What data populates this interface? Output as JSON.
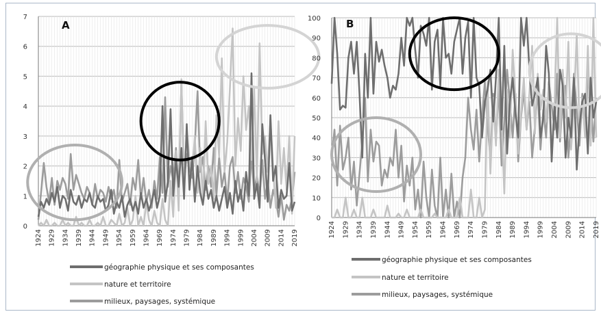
{
  "figure": {
    "series_colors": {
      "geographie": "#6e6e6e",
      "nature": "#c4c4c4",
      "milieux": "#9c9c9c"
    }
  },
  "chart_data": [
    {
      "type": "line",
      "panel_label": "A",
      "title": "",
      "xlabel": "",
      "ylabel": "",
      "ylim": [
        0,
        7
      ],
      "yticks": [
        0,
        1,
        2,
        3,
        4,
        5,
        6,
        7
      ],
      "x_start": 1924,
      "x_end": 2019,
      "xtick_labels": [
        "1924",
        "1929",
        "1934",
        "1939",
        "1944",
        "1949",
        "1954",
        "1959",
        "1964",
        "1969",
        "1974",
        "1979",
        "1984",
        "1989",
        "1994",
        "1999",
        "2004",
        "2009",
        "2014",
        "2019"
      ],
      "grid": true,
      "legend_placement": "bottom",
      "highlight_ellipses": [
        {
          "color": "#b0b0b0",
          "x_range": [
            1920,
            1955
          ],
          "y_range": [
            0.2,
            2.7
          ]
        },
        {
          "color": "#000000",
          "x_range": [
            1962,
            1991
          ],
          "y_range": [
            2.2,
            4.8
          ]
        },
        {
          "color": "#d4d4d4",
          "x_range": [
            1990,
            2028
          ],
          "y_range": [
            4.6,
            6.7
          ]
        }
      ],
      "series": [
        {
          "name": "géographie physique et ses composantes",
          "color": "#6e6e6e",
          "values": [
            0.3,
            0.8,
            0.6,
            0.9,
            0.7,
            1.1,
            0.8,
            1.3,
            0.6,
            1.0,
            0.9,
            0.5,
            1.2,
            0.8,
            0.7,
            1.0,
            0.6,
            0.9,
            0.8,
            1.1,
            0.7,
            0.6,
            1.0,
            0.8,
            0.9,
            0.5,
            0.7,
            1.2,
            0.4,
            0.8,
            0.6,
            1.0,
            0.3,
            0.7,
            0.9,
            0.5,
            0.8,
            0.4,
            1.1,
            0.6,
            0.9,
            0.5,
            0.8,
            1.2,
            0.6,
            1.0,
            4.0,
            0.8,
            1.5,
            3.9,
            1.0,
            2.2,
            1.3,
            2.6,
            0.9,
            3.4,
            1.2,
            2.3,
            0.8,
            2.0,
            1.1,
            0.7,
            1.5,
            0.9,
            1.2,
            0.6,
            1.0,
            0.5,
            0.9,
            1.3,
            0.6,
            1.1,
            0.4,
            1.5,
            0.8,
            1.2,
            0.5,
            1.8,
            1.0,
            5.1,
            0.9,
            1.4,
            0.6,
            3.4,
            2.2,
            0.8,
            3.7,
            1.5,
            2.0,
            0.6,
            1.2,
            0.9,
            1.0,
            2.1,
            0.5,
            0.8
          ]
        },
        {
          "name": "nature et territoire",
          "color": "#c4c4c4",
          "values": [
            0.0,
            0.1,
            0.0,
            0.2,
            0.0,
            0.0,
            0.1,
            0.0,
            0.0,
            0.2,
            0.0,
            0.1,
            0.0,
            0.0,
            0.3,
            0.0,
            0.1,
            0.0,
            0.0,
            0.2,
            0.0,
            0.0,
            0.1,
            0.0,
            0.3,
            0.0,
            0.0,
            0.2,
            0.1,
            0.0,
            0.4,
            0.0,
            0.1,
            0.6,
            0.0,
            0.2,
            1.0,
            0.0,
            0.3,
            0.0,
            0.8,
            0.2,
            0.0,
            0.5,
            0.1,
            0.0,
            0.9,
            0.2,
            0.0,
            1.5,
            0.3,
            2.5,
            0.5,
            4.9,
            1.2,
            3.2,
            2.2,
            1.8,
            3.0,
            1.1,
            2.6,
            0.8,
            3.5,
            1.4,
            2.0,
            0.9,
            3.7,
            2.3,
            5.6,
            1.8,
            2.8,
            4.6,
            6.6,
            2.0,
            3.6,
            2.5,
            5.0,
            3.2,
            4.0,
            2.2,
            4.6,
            1.5,
            6.1,
            2.4,
            3.0,
            1.8,
            3.5,
            2.0,
            0.6,
            3.5,
            1.4,
            2.6,
            1.2,
            3.0,
            0.4,
            3.0
          ]
        },
        {
          "name": "milieux, paysages, systémique",
          "color": "#9c9c9c",
          "values": [
            0.2,
            1.1,
            2.1,
            1.3,
            0.8,
            1.6,
            0.7,
            1.5,
            1.2,
            1.6,
            1.4,
            0.9,
            2.4,
            1.2,
            1.7,
            1.4,
            1.1,
            0.9,
            1.3,
            1.1,
            0.7,
            1.4,
            0.9,
            1.2,
            1.1,
            0.8,
            1.3,
            0.9,
            1.2,
            0.6,
            2.2,
            0.8,
            1.1,
            1.4,
            0.7,
            1.6,
            1.2,
            2.2,
            0.9,
            1.6,
            0.8,
            1.2,
            0.6,
            1.5,
            0.9,
            2.3,
            1.1,
            4.3,
            1.3,
            2.0,
            1.5,
            2.6,
            1.1,
            4.8,
            1.5,
            2.4,
            1.9,
            1.6,
            2.7,
            4.5,
            1.8,
            2.3,
            1.2,
            2.0,
            1.3,
            2.6,
            1.0,
            2.3,
            1.3,
            1.8,
            0.8,
            2.0,
            2.3,
            1.1,
            1.8,
            0.9,
            1.6,
            1.3,
            0.8,
            2.4,
            1.1,
            1.7,
            1.0,
            2.2,
            0.9,
            1.5,
            0.6,
            1.2,
            0.9,
            0.3,
            1.0,
            0.2,
            0.7,
            0.5,
            0.9,
            1.8
          ]
        }
      ]
    },
    {
      "type": "line",
      "panel_label": "B",
      "title": "",
      "xlabel": "",
      "ylabel": "",
      "ylim": [
        0,
        100
      ],
      "yticks": [
        0,
        10,
        20,
        30,
        40,
        50,
        60,
        70,
        80,
        90,
        100
      ],
      "x_start": 1924,
      "x_end": 2019,
      "xtick_labels": [
        "1924",
        "1929",
        "1934",
        "1939",
        "1944",
        "1949",
        "1954",
        "1959",
        "1964",
        "1969",
        "1974",
        "1979",
        "1984",
        "1989",
        "1994",
        "1999",
        "2004",
        "2009",
        "2014",
        "2019"
      ],
      "grid": true,
      "legend_placement": "bottom",
      "highlight_ellipses": [
        {
          "color": "#b0b0b0",
          "x_range": [
            1924,
            1956
          ],
          "y_range": [
            13,
            50
          ]
        },
        {
          "color": "#000000",
          "x_range": [
            1952,
            1984
          ],
          "y_range": [
            64,
            100
          ]
        },
        {
          "color": "#d4d4d4",
          "x_range": [
            1995,
            2025
          ],
          "y_range": [
            55,
            92
          ]
        }
      ],
      "series": [
        {
          "name": "géographie physique et ses composantes",
          "color": "#6e6e6e",
          "values": [
            67,
            100,
            82,
            54,
            56,
            55,
            80,
            88,
            72,
            88,
            62,
            30,
            82,
            60,
            100,
            62,
            88,
            78,
            84,
            76,
            70,
            60,
            66,
            64,
            72,
            90,
            76,
            100,
            96,
            100,
            84,
            70,
            96,
            92,
            86,
            100,
            64,
            88,
            94,
            66,
            100,
            80,
            82,
            72,
            88,
            94,
            100,
            72,
            90,
            98,
            60,
            100,
            70,
            66,
            40,
            58,
            64,
            74,
            48,
            70,
            100,
            44,
            86,
            32,
            58,
            70,
            52,
            40,
            100,
            86,
            100,
            74,
            56,
            62,
            70,
            40,
            50,
            86,
            72,
            28,
            56,
            40,
            74,
            66,
            30,
            50,
            40,
            70,
            24,
            46,
            58,
            62,
            32,
            70,
            50,
            58
          ]
        },
        {
          "name": "nature et territoire",
          "color": "#c4c4c4",
          "values": [
            0,
            0,
            4,
            0,
            0,
            10,
            0,
            0,
            4,
            0,
            0,
            10,
            0,
            0,
            0,
            4,
            0,
            0,
            0,
            0,
            6,
            0,
            0,
            0,
            2,
            0,
            0,
            4,
            0,
            0,
            0,
            0,
            4,
            0,
            0,
            0,
            0,
            2,
            0,
            0,
            0,
            0,
            4,
            0,
            0,
            0,
            10,
            0,
            0,
            0,
            14,
            0,
            0,
            10,
            0,
            4,
            68,
            22,
            60,
            36,
            74,
            50,
            12,
            64,
            40,
            84,
            60,
            32,
            52,
            70,
            44,
            62,
            86,
            42,
            72,
            54,
            64,
            48,
            66,
            32,
            56,
            100,
            40,
            74,
            50,
            88,
            34,
            56,
            92,
            46,
            60,
            40,
            86,
            36,
            100,
            40
          ]
        },
        {
          "name": "milieux, paysages, systémique",
          "color": "#9c9c9c",
          "values": [
            30,
            44,
            16,
            46,
            24,
            30,
            40,
            14,
            28,
            6,
            22,
            38,
            60,
            18,
            44,
            28,
            38,
            36,
            16,
            24,
            20,
            30,
            26,
            44,
            20,
            36,
            8,
            26,
            16,
            30,
            4,
            14,
            0,
            28,
            10,
            0,
            24,
            6,
            0,
            30,
            0,
            14,
            0,
            22,
            0,
            8,
            0,
            20,
            30,
            60,
            44,
            34,
            54,
            28,
            50,
            68,
            46,
            30,
            62,
            38,
            66,
            26,
            48,
            74,
            58,
            40,
            62,
            28,
            50,
            64,
            44,
            58,
            30,
            46,
            64,
            34,
            54,
            40,
            68,
            56,
            44,
            72,
            38,
            60,
            66,
            30,
            48,
            72,
            54,
            36,
            62,
            44,
            70,
            58,
            38,
            60
          ]
        }
      ]
    }
  ]
}
